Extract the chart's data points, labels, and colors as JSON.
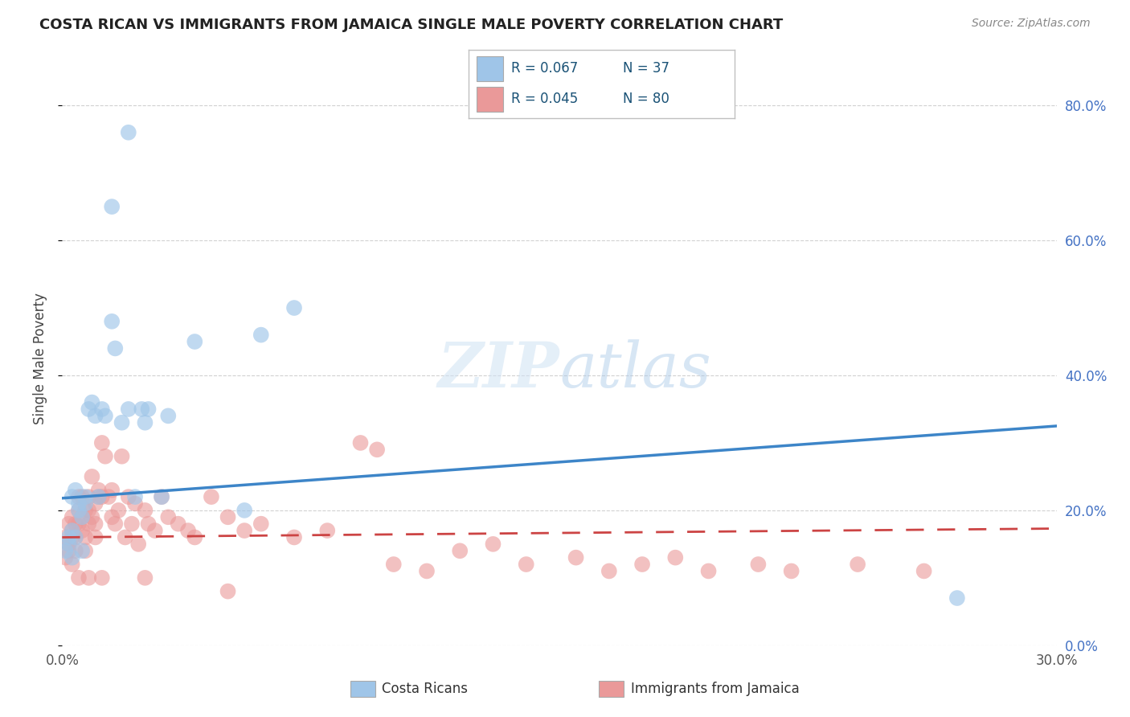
{
  "title": "COSTA RICAN VS IMMIGRANTS FROM JAMAICA SINGLE MALE POVERTY CORRELATION CHART",
  "source": "Source: ZipAtlas.com",
  "ylabel": "Single Male Poverty",
  "xlim": [
    0.0,
    0.3
  ],
  "ylim": [
    0.0,
    0.85
  ],
  "right_yticks": [
    0.0,
    0.2,
    0.4,
    0.6,
    0.8
  ],
  "right_yticklabels": [
    "0.0%",
    "20.0%",
    "40.0%",
    "60.0%",
    "80.0%"
  ],
  "xticks": [
    0.0,
    0.05,
    0.1,
    0.15,
    0.2,
    0.25,
    0.3
  ],
  "xticklabels": [
    "0.0%",
    "",
    "",
    "",
    "",
    "",
    "30.0%"
  ],
  "background_color": "#ffffff",
  "grid_color": "#cccccc",
  "color_blue": "#9fc5e8",
  "color_pink": "#ea9999",
  "trend_blue": [
    0.0,
    0.3,
    0.218,
    0.325
  ],
  "trend_pink": [
    0.0,
    0.3,
    0.16,
    0.173
  ],
  "costa_rica_x": [
    0.001,
    0.002,
    0.002,
    0.003,
    0.003,
    0.003,
    0.004,
    0.004,
    0.005,
    0.005,
    0.006,
    0.006,
    0.007,
    0.007,
    0.008,
    0.009,
    0.01,
    0.011,
    0.012,
    0.013,
    0.015,
    0.016,
    0.018,
    0.02,
    0.022,
    0.024,
    0.025,
    0.026,
    0.03,
    0.032,
    0.04,
    0.055,
    0.06,
    0.07,
    0.015,
    0.27,
    0.02
  ],
  "costa_rica_y": [
    0.14,
    0.15,
    0.16,
    0.13,
    0.17,
    0.22,
    0.16,
    0.23,
    0.2,
    0.21,
    0.14,
    0.19,
    0.22,
    0.21,
    0.35,
    0.36,
    0.34,
    0.22,
    0.35,
    0.34,
    0.48,
    0.44,
    0.33,
    0.35,
    0.22,
    0.35,
    0.33,
    0.35,
    0.22,
    0.34,
    0.45,
    0.2,
    0.46,
    0.5,
    0.65,
    0.07,
    0.76
  ],
  "jamaica_x": [
    0.001,
    0.001,
    0.002,
    0.002,
    0.002,
    0.003,
    0.003,
    0.003,
    0.003,
    0.004,
    0.004,
    0.004,
    0.005,
    0.005,
    0.005,
    0.006,
    0.006,
    0.006,
    0.007,
    0.007,
    0.007,
    0.008,
    0.008,
    0.008,
    0.009,
    0.009,
    0.01,
    0.01,
    0.01,
    0.011,
    0.011,
    0.012,
    0.012,
    0.013,
    0.014,
    0.015,
    0.015,
    0.016,
    0.017,
    0.018,
    0.019,
    0.02,
    0.021,
    0.022,
    0.023,
    0.025,
    0.026,
    0.028,
    0.03,
    0.032,
    0.035,
    0.038,
    0.04,
    0.045,
    0.05,
    0.055,
    0.06,
    0.07,
    0.08,
    0.09,
    0.1,
    0.11,
    0.12,
    0.13,
    0.14,
    0.155,
    0.165,
    0.175,
    0.185,
    0.195,
    0.21,
    0.22,
    0.24,
    0.26,
    0.005,
    0.008,
    0.012,
    0.025,
    0.05,
    0.095
  ],
  "jamaica_y": [
    0.13,
    0.16,
    0.15,
    0.18,
    0.14,
    0.17,
    0.12,
    0.16,
    0.19,
    0.18,
    0.16,
    0.14,
    0.22,
    0.2,
    0.18,
    0.19,
    0.22,
    0.17,
    0.16,
    0.14,
    0.2,
    0.22,
    0.2,
    0.18,
    0.25,
    0.19,
    0.21,
    0.18,
    0.16,
    0.22,
    0.23,
    0.3,
    0.22,
    0.28,
    0.22,
    0.23,
    0.19,
    0.18,
    0.2,
    0.28,
    0.16,
    0.22,
    0.18,
    0.21,
    0.15,
    0.2,
    0.18,
    0.17,
    0.22,
    0.19,
    0.18,
    0.17,
    0.16,
    0.22,
    0.19,
    0.17,
    0.18,
    0.16,
    0.17,
    0.3,
    0.12,
    0.11,
    0.14,
    0.15,
    0.12,
    0.13,
    0.11,
    0.12,
    0.13,
    0.11,
    0.12,
    0.11,
    0.12,
    0.11,
    0.1,
    0.1,
    0.1,
    0.1,
    0.08,
    0.29
  ]
}
